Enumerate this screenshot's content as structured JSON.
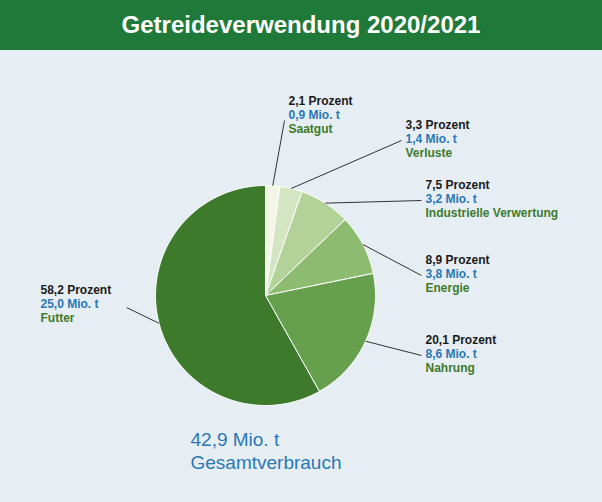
{
  "chart_data": {
    "type": "pie",
    "title": "Getreideverwendung 2020/2021",
    "categories": [
      "Saatgut",
      "Verluste",
      "Industrielle Verwertung",
      "Energie",
      "Nahrung",
      "Futter"
    ],
    "values": [
      2.1,
      3.3,
      7.5,
      8.9,
      20.1,
      58.2
    ],
    "value_labels": [
      "2,1 Prozent",
      "3,3 Prozent",
      "7,5 Prozent",
      "8,9 Prozent",
      "20,1 Prozent",
      "58,2 Prozent"
    ],
    "amounts": [
      "0,9 Mio. t",
      "1,4 Mio. t",
      "3,2 Mio. t",
      "3,8 Mio. t",
      "8,6 Mio. t",
      "25,0 Mio. t"
    ],
    "total": "42,9 Mio. t",
    "total_label": "Gesamtverbrauch",
    "colors": [
      "#f2f6e6",
      "#d3e5c1",
      "#b3d298",
      "#8dbb6f",
      "#66a04c",
      "#3d7a2b"
    ],
    "data_labels": true,
    "tick_labels": false
  }
}
